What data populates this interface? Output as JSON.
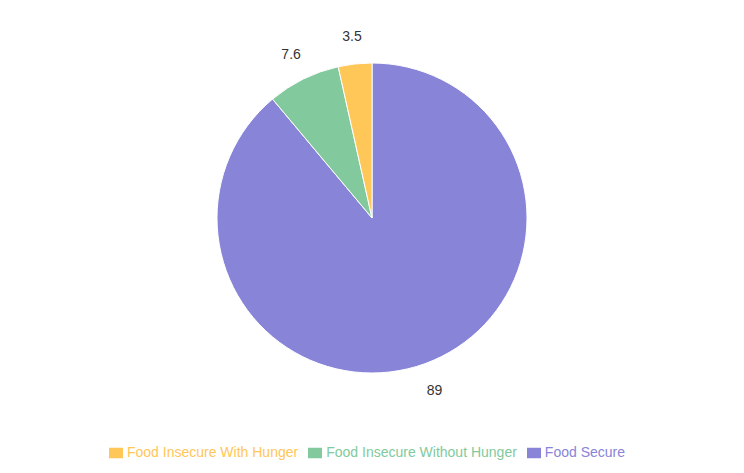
{
  "chart_data": {
    "type": "pie",
    "categories": [
      "Food Secure",
      "Food Insecure Without Hunger",
      "Food Insecure With Hunger"
    ],
    "values": [
      89,
      7.6,
      3.5
    ],
    "colors": [
      "#8884d8",
      "#82ca9d",
      "#ffc658"
    ],
    "data_labels": true,
    "legend": "bottom"
  }
}
